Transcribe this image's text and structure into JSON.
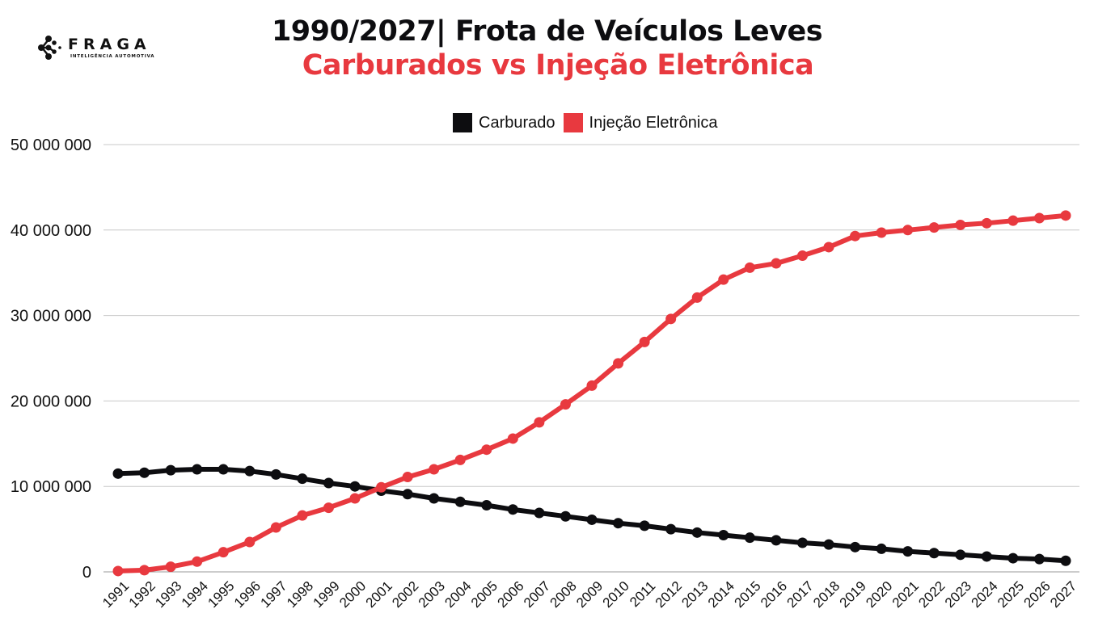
{
  "logo": {
    "name": "FRAGA",
    "tagline": "INTELIGÊNCIA AUTOMOTIVA"
  },
  "chart_data": {
    "type": "line",
    "title": "1990/2027| Frota de Veículos Leves",
    "subtitle": "Carburados vs Injeção Eletrônica",
    "xlabel": "",
    "ylabel": "",
    "ylim": [
      0,
      50000000
    ],
    "yticks": [
      0,
      10000000,
      20000000,
      30000000,
      40000000,
      50000000
    ],
    "ytick_labels": [
      "0",
      "10 000 000",
      "20 000 000",
      "30 000 000",
      "40 000 000",
      "50 000 000"
    ],
    "grid": true,
    "legend_position": "top-center",
    "x": [
      "1991",
      "1992",
      "1993",
      "1994",
      "1995",
      "1996",
      "1997",
      "1998",
      "1999",
      "2000",
      "2001",
      "2002",
      "2003",
      "2004",
      "2005",
      "2006",
      "2007",
      "2008",
      "2009",
      "2010",
      "2011",
      "2012",
      "2013",
      "2014",
      "2015",
      "2016",
      "2017",
      "2018",
      "2019",
      "2020",
      "2021",
      "2022",
      "2023",
      "2024",
      "2025",
      "2026",
      "2027"
    ],
    "series": [
      {
        "name": "Carburado",
        "color": "#0d0d10",
        "values": [
          11500000,
          11600000,
          11900000,
          12000000,
          12000000,
          11800000,
          11400000,
          10900000,
          10400000,
          10000000,
          9500000,
          9100000,
          8600000,
          8200000,
          7800000,
          7300000,
          6900000,
          6500000,
          6100000,
          5700000,
          5400000,
          5000000,
          4600000,
          4300000,
          4000000,
          3700000,
          3400000,
          3200000,
          2900000,
          2700000,
          2400000,
          2200000,
          2000000,
          1800000,
          1600000,
          1500000,
          1300000
        ]
      },
      {
        "name": "Injeção Eletrônica",
        "color": "#e8393f",
        "values": [
          100000,
          200000,
          600000,
          1200000,
          2300000,
          3500000,
          5200000,
          6600000,
          7500000,
          8600000,
          9900000,
          11100000,
          12000000,
          13100000,
          14300000,
          15600000,
          17500000,
          19600000,
          21800000,
          24400000,
          26900000,
          29600000,
          32100000,
          34200000,
          35600000,
          36100000,
          37000000,
          38000000,
          39300000,
          39700000,
          40000000,
          40300000,
          40600000,
          40800000,
          41100000,
          41400000,
          41700000
        ]
      }
    ]
  }
}
